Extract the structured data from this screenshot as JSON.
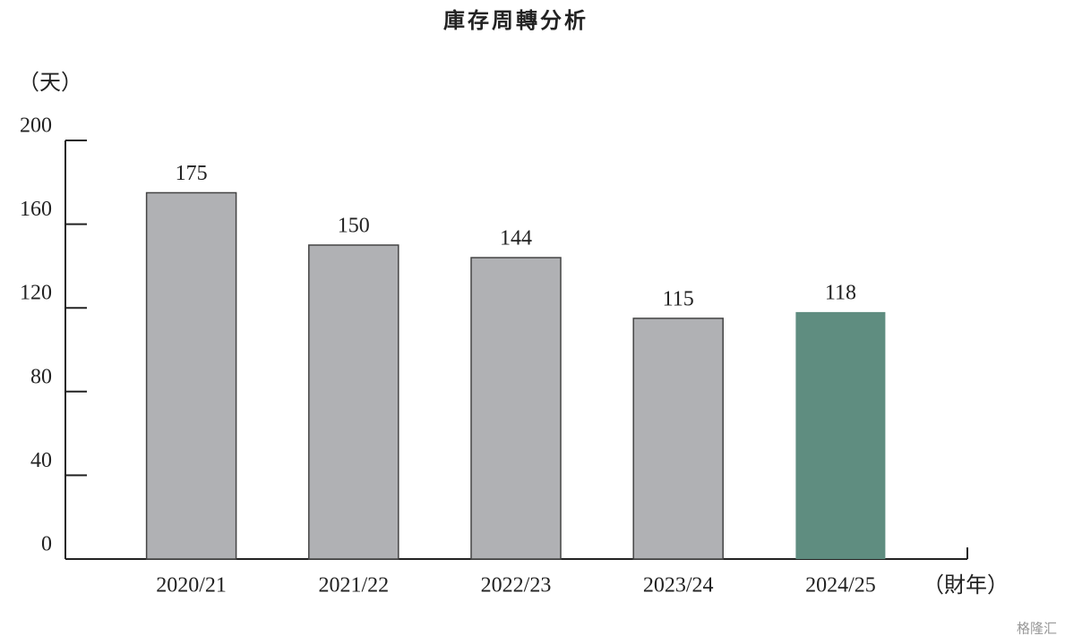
{
  "chart_data": {
    "type": "bar",
    "title": "庫存周轉分析",
    "y_label": "（天）",
    "x_label": "（財年）",
    "categories": [
      "2020/21",
      "2021/22",
      "2022/23",
      "2023/24",
      "2024/25"
    ],
    "values": [
      175,
      150,
      144,
      115,
      118
    ],
    "colors": [
      "#b0b1b4",
      "#b0b1b4",
      "#b0b1b4",
      "#b0b1b4",
      "#5f8d80"
    ],
    "ylim": [
      0,
      200
    ],
    "yticks": [
      0,
      40,
      80,
      120,
      160,
      200
    ],
    "grid": false,
    "watermark": "格隆汇"
  }
}
